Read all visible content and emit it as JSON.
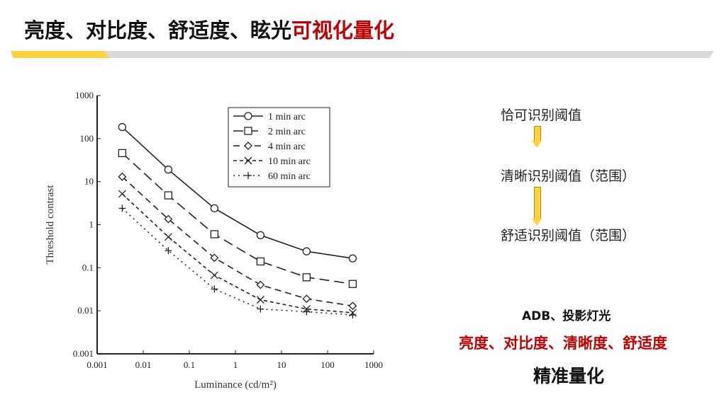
{
  "header": {
    "title_black": "亮度、对比度、舒适度、眩光",
    "title_red": "可视化量化"
  },
  "colors": {
    "accent_red": "#c00000",
    "accent_yellow": "#ffd23f",
    "bar_gray": "#d9d9d9"
  },
  "flow": {
    "steps": [
      "恰可识别阈值",
      "清晰识别阈值（范围）",
      "舒适识别阈值（范围）"
    ],
    "arrow_icon": "arrow-down"
  },
  "bottom": {
    "line1": "ADB、投影灯光",
    "line2": "亮度、对比度、清晰度、舒适度",
    "line3": "精准量化"
  },
  "chart_data": {
    "type": "line",
    "xlabel": "Luminance (cd/m²)",
    "ylabel": "Threshold contrast",
    "xscale": "log",
    "yscale": "log",
    "xlim": [
      0.001,
      1000
    ],
    "ylim": [
      0.001,
      1000
    ],
    "xticks": [
      "0.001",
      "0.01",
      "0.1",
      "1",
      "10",
      "100",
      "1000"
    ],
    "yticks": [
      "0.001",
      "0.01",
      "0.1",
      "1",
      "10",
      "100",
      "1000"
    ],
    "legend_position": "top-right",
    "grid": false,
    "x": [
      0.0035,
      0.035,
      0.35,
      3.5,
      35,
      350
    ],
    "series": [
      {
        "name": "1 min arc",
        "marker": "circle",
        "dash": "solid",
        "values": [
          185,
          19,
          2.4,
          0.57,
          0.24,
          0.165
        ]
      },
      {
        "name": "2 min arc",
        "marker": "square",
        "dash": "long-dash",
        "values": [
          46,
          4.8,
          0.6,
          0.14,
          0.06,
          0.042
        ]
      },
      {
        "name": "4 min arc",
        "marker": "diamond",
        "dash": "dash",
        "values": [
          13,
          1.35,
          0.17,
          0.04,
          0.019,
          0.013
        ]
      },
      {
        "name": "10 min arc",
        "marker": "x",
        "dash": "short-dash",
        "values": [
          5.2,
          0.52,
          0.067,
          0.018,
          0.011,
          0.009
        ]
      },
      {
        "name": "60 min arc",
        "marker": "plus",
        "dash": "dotted",
        "values": [
          2.4,
          0.25,
          0.032,
          0.011,
          0.0095,
          0.008
        ]
      }
    ]
  }
}
